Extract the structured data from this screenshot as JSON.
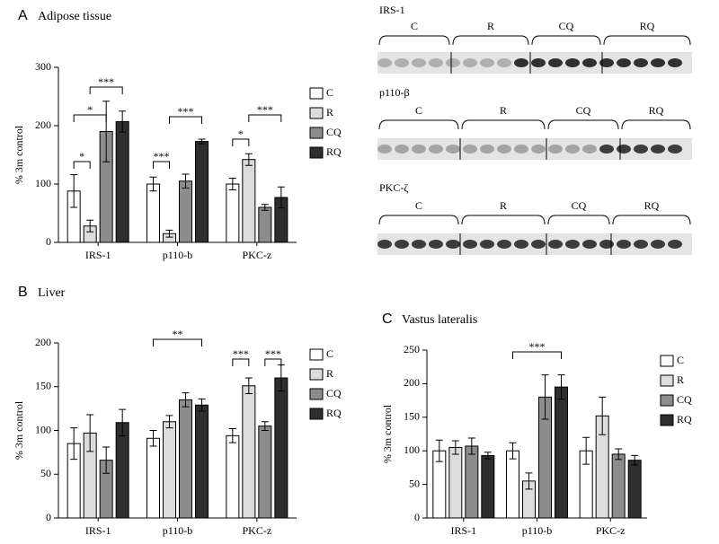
{
  "chart_data": [
    {
      "type": "bar",
      "panel": "A",
      "title": "Adipose tissue",
      "ylabel": "% 3m control",
      "categories": [
        "IRS-1",
        "p110-b",
        "PKC-z"
      ],
      "ylim": [
        0,
        300
      ],
      "yticks": [
        0,
        100,
        200,
        300
      ],
      "series": [
        {
          "name": "C",
          "color": "#ffffff",
          "values": [
            88,
            100,
            100
          ],
          "errors": [
            28,
            12,
            10
          ]
        },
        {
          "name": "R",
          "color": "#dcdcdc",
          "values": [
            28,
            15,
            142
          ],
          "errors": [
            10,
            6,
            10
          ]
        },
        {
          "name": "CQ",
          "color": "#8c8c8c",
          "values": [
            190,
            105,
            60
          ],
          "errors": [
            52,
            12,
            5
          ]
        },
        {
          "name": "RQ",
          "color": "#2e2e2e",
          "values": [
            207,
            173,
            77
          ],
          "errors": [
            18,
            4,
            18
          ]
        }
      ],
      "annotations": [
        "*",
        "*",
        "***",
        "***",
        "***",
        "*",
        "***"
      ]
    },
    {
      "type": "bar",
      "panel": "B",
      "title": "Liver",
      "ylabel": "% 3m control",
      "categories": [
        "IRS-1",
        "p110-b",
        "PKC-z"
      ],
      "ylim": [
        0,
        200
      ],
      "yticks": [
        0,
        50,
        100,
        150,
        200
      ],
      "series": [
        {
          "name": "C",
          "color": "#ffffff",
          "values": [
            85,
            91,
            94
          ],
          "errors": [
            18,
            9,
            8
          ]
        },
        {
          "name": "R",
          "color": "#dcdcdc",
          "values": [
            97,
            110,
            151
          ],
          "errors": [
            21,
            7,
            9
          ]
        },
        {
          "name": "CQ",
          "color": "#8c8c8c",
          "values": [
            66,
            135,
            105
          ],
          "errors": [
            15,
            8,
            5
          ]
        },
        {
          "name": "RQ",
          "color": "#2e2e2e",
          "values": [
            109,
            129,
            160
          ],
          "errors": [
            15,
            7,
            15
          ]
        }
      ],
      "annotations": [
        "**",
        "***",
        "***"
      ]
    },
    {
      "type": "bar",
      "panel": "C",
      "title": "Vastus lateralis",
      "ylabel": "% 3m control",
      "categories": [
        "IRS-1",
        "p110-b",
        "PKC-z"
      ],
      "ylim": [
        0,
        250
      ],
      "yticks": [
        0,
        50,
        100,
        150,
        200,
        250
      ],
      "series": [
        {
          "name": "C",
          "color": "#ffffff",
          "values": [
            100,
            100,
            100
          ],
          "errors": [
            16,
            12,
            20
          ]
        },
        {
          "name": "R",
          "color": "#dcdcdc",
          "values": [
            105,
            55,
            152
          ],
          "errors": [
            10,
            12,
            28
          ]
        },
        {
          "name": "CQ",
          "color": "#8c8c8c",
          "values": [
            107,
            180,
            95
          ],
          "errors": [
            12,
            33,
            8
          ]
        },
        {
          "name": "RQ",
          "color": "#2e2e2e",
          "values": [
            93,
            195,
            86
          ],
          "errors": [
            5,
            18,
            7
          ]
        }
      ],
      "annotations": [
        "***"
      ]
    }
  ],
  "blots": [
    {
      "label": "IRS-1",
      "groups": [
        "C",
        "R",
        "CQ",
        "RQ"
      ]
    },
    {
      "label": "p110-β",
      "groups": [
        "C",
        "R",
        "CQ",
        "RQ"
      ]
    },
    {
      "label": "PKC-ζ",
      "groups": [
        "C",
        "R",
        "CQ",
        "RQ"
      ]
    }
  ]
}
